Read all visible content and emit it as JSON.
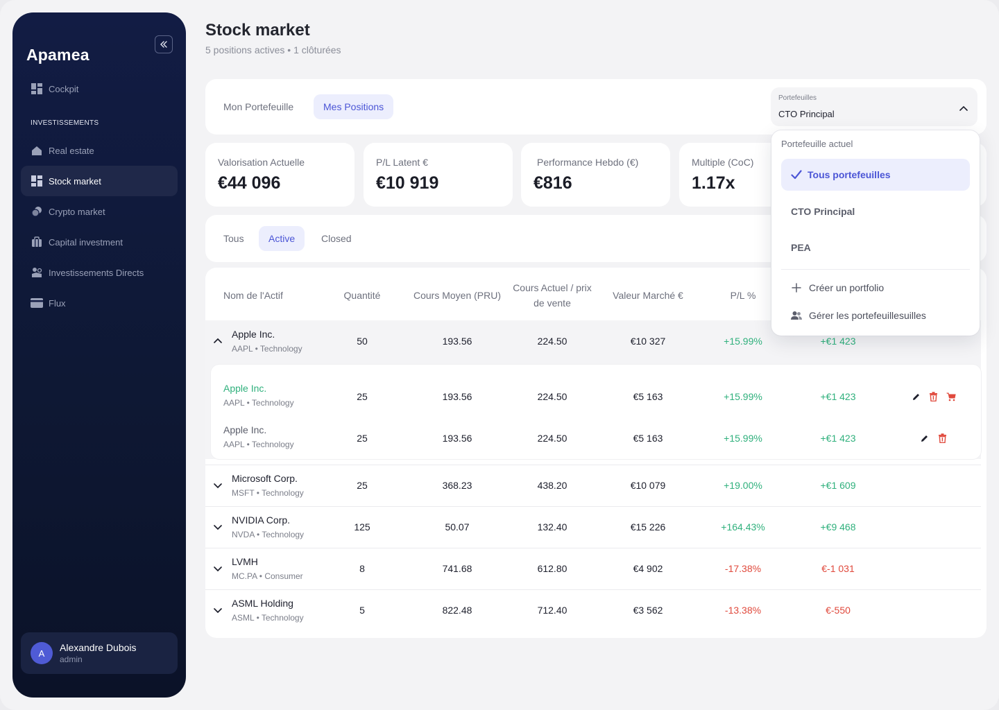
{
  "app": {
    "name": "Apamea"
  },
  "sidebar": {
    "section_label": "INVESTISSEMENTS",
    "items": [
      {
        "label": "Cockpit",
        "icon": "dashboard-icon"
      },
      {
        "label": "Real estate",
        "icon": "home-icon"
      },
      {
        "label": "Stock market",
        "icon": "dashboard-icon",
        "active": true
      },
      {
        "label": "Crypto market",
        "icon": "coins-icon"
      },
      {
        "label": "Capital investment",
        "icon": "briefcase-icon"
      },
      {
        "label": "Investissements Directs",
        "icon": "investment-icon"
      },
      {
        "label": "Flux",
        "icon": "card-icon"
      }
    ],
    "user": {
      "initial": "A",
      "name": "Alexandre Dubois",
      "role": "admin"
    }
  },
  "header": {
    "title": "Stock market",
    "subtitle": "5 positions actives • 1 clôturées"
  },
  "view_tabs": [
    {
      "label": "Mon Portefeuille"
    },
    {
      "label": "Mes Positions",
      "active": true
    }
  ],
  "portfolio_select": {
    "label": "Portefeuilles",
    "value": "CTO Principal"
  },
  "metrics": [
    {
      "label": "Valorisation Actuelle",
      "value": "€44 096"
    },
    {
      "label": "P/L Latent €",
      "value": "€10 919"
    },
    {
      "label": "Performance Hebdo (€)",
      "value": "€816"
    },
    {
      "label": "Multiple (CoC)",
      "value": "1.17x"
    }
  ],
  "status_filters": [
    {
      "label": "Tous"
    },
    {
      "label": "Active",
      "active": true
    },
    {
      "label": "Closed"
    }
  ],
  "table": {
    "columns": [
      "Nom de l'Actif",
      "Quantité",
      "Cours Moyen (PRU)",
      "Cours Actuel / prix de vente",
      "Valeur Marché €",
      "P/L %"
    ],
    "rows": [
      {
        "name": "Apple Inc.",
        "meta": "AAPL • Technology",
        "qty": "50",
        "pru": "193.56",
        "price": "224.50",
        "value": "€10 327",
        "pl_pct": "+15.99%",
        "pl_eur": "+€1 423",
        "expanded": true,
        "lots": [
          {
            "name": "Apple Inc.",
            "meta": "AAPL • Technology",
            "qty": "25",
            "pru": "193.56",
            "price": "224.50",
            "value": "€5 163",
            "pl_pct": "+15.99%",
            "pl_eur": "+€1 423"
          },
          {
            "name": "Apple Inc.",
            "meta": "AAPL • Technology",
            "qty": "25",
            "pru": "193.56",
            "price": "224.50",
            "value": "€5 163",
            "pl_pct": "+15.99%",
            "pl_eur": "+€1 423"
          }
        ]
      },
      {
        "name": "Microsoft Corp.",
        "meta": "MSFT • Technology",
        "qty": "25",
        "pru": "368.23",
        "price": "438.20",
        "value": "€10 079",
        "pl_pct": "+19.00%",
        "pl_eur": "+€1 609"
      },
      {
        "name": "NVIDIA Corp.",
        "meta": "NVDA • Technology",
        "qty": "125",
        "pru": "50.07",
        "price": "132.40",
        "value": "€15 226",
        "pl_pct": "+164.43%",
        "pl_eur": "+€9 468"
      },
      {
        "name": "LVMH",
        "meta": "MC.PA • Consumer",
        "qty": "8",
        "pru": "741.68",
        "price": "612.80",
        "value": "€4 902",
        "pl_pct": "-17.38%",
        "pl_eur": "€-1 031"
      },
      {
        "name": "ASML Holding",
        "meta": "ASML • Technology",
        "qty": "5",
        "pru": "822.48",
        "price": "712.40",
        "value": "€3 562",
        "pl_pct": "-13.38%",
        "pl_eur": "€-550"
      }
    ]
  },
  "dropdown": {
    "heading": "Portefeuille actuel",
    "options": [
      {
        "label": "Tous portefeuilles",
        "selected": true
      },
      {
        "label": "CTO Principal"
      },
      {
        "label": "PEA"
      }
    ],
    "actions": [
      {
        "label": "Créer un portfolio",
        "icon": "plus-icon"
      },
      {
        "label": "Gérer les portefeuillesuilles",
        "icon": "users-icon"
      }
    ]
  },
  "colors": {
    "accent": "#4b55d6",
    "positive": "#2fb07c",
    "negative": "#e0493c",
    "sidebar": "#121c44"
  }
}
